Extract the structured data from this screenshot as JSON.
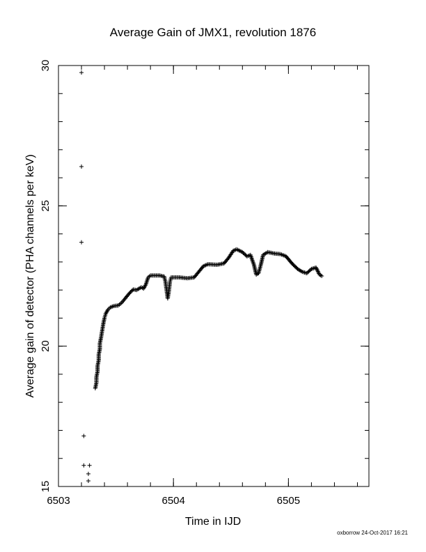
{
  "chart_data": {
    "type": "scatter",
    "title": "Average Gain of JMX1, revolution 1876",
    "xlabel": "Time in IJD",
    "ylabel": "Average gain of detector (PHA channels per keV)",
    "xlim": [
      6503.0,
      6505.7
    ],
    "ylim": [
      15,
      30
    ],
    "x_ticks": [
      6503,
      6504,
      6505
    ],
    "y_ticks": [
      15,
      20,
      25,
      30
    ],
    "x_minor_step": 0.2,
    "y_minor_step": 1,
    "marker": "plus",
    "grid": false,
    "points": [
      [
        6503.2,
        29.75
      ],
      [
        6503.2,
        26.4
      ],
      [
        6503.2,
        23.7
      ],
      [
        6503.22,
        16.8
      ],
      [
        6503.22,
        15.75
      ],
      [
        6503.27,
        15.75
      ],
      [
        6503.26,
        15.45
      ],
      [
        6503.26,
        15.2
      ],
      [
        6503.32,
        18.5
      ],
      [
        6503.33,
        18.7
      ],
      [
        6503.33,
        18.9
      ],
      [
        6503.34,
        19.1
      ],
      [
        6503.34,
        19.3
      ],
      [
        6503.35,
        19.5
      ],
      [
        6503.35,
        19.7
      ],
      [
        6503.36,
        19.9
      ],
      [
        6503.36,
        20.1
      ],
      [
        6503.37,
        20.3
      ],
      [
        6503.38,
        20.55
      ],
      [
        6503.39,
        20.8
      ],
      [
        6503.4,
        21.0
      ],
      [
        6503.41,
        21.15
      ],
      [
        6503.43,
        21.3
      ],
      [
        6503.45,
        21.38
      ],
      [
        6503.48,
        21.43
      ],
      [
        6503.52,
        21.45
      ],
      [
        6503.55,
        21.55
      ],
      [
        6503.58,
        21.7
      ],
      [
        6503.62,
        21.9
      ],
      [
        6503.65,
        22.02
      ],
      [
        6503.68,
        22.0
      ],
      [
        6503.7,
        22.05
      ],
      [
        6503.72,
        22.1
      ],
      [
        6503.74,
        22.05
      ],
      [
        6503.76,
        22.2
      ],
      [
        6503.78,
        22.45
      ],
      [
        6503.8,
        22.52
      ],
      [
        6503.84,
        22.52
      ],
      [
        6503.88,
        22.52
      ],
      [
        6503.92,
        22.48
      ],
      [
        6503.93,
        22.3
      ],
      [
        6503.94,
        22.0
      ],
      [
        6503.95,
        21.7
      ],
      [
        6503.96,
        21.95
      ],
      [
        6503.97,
        22.3
      ],
      [
        6503.98,
        22.45
      ],
      [
        6504.05,
        22.45
      ],
      [
        6504.12,
        22.42
      ],
      [
        6504.18,
        22.45
      ],
      [
        6504.22,
        22.65
      ],
      [
        6504.26,
        22.85
      ],
      [
        6504.3,
        22.92
      ],
      [
        6504.38,
        22.9
      ],
      [
        6504.44,
        22.95
      ],
      [
        6504.48,
        23.15
      ],
      [
        6504.52,
        23.4
      ],
      [
        6504.55,
        23.45
      ],
      [
        6504.6,
        23.35
      ],
      [
        6504.64,
        23.2
      ],
      [
        6504.67,
        23.25
      ],
      [
        6504.7,
        22.9
      ],
      [
        6504.72,
        22.55
      ],
      [
        6504.74,
        22.6
      ],
      [
        6504.76,
        22.9
      ],
      [
        6504.78,
        23.25
      ],
      [
        6504.82,
        23.35
      ],
      [
        6504.88,
        23.3
      ],
      [
        6504.93,
        23.28
      ],
      [
        6504.98,
        23.2
      ],
      [
        6505.03,
        22.95
      ],
      [
        6505.08,
        22.75
      ],
      [
        6505.12,
        22.65
      ],
      [
        6505.16,
        22.6
      ],
      [
        6505.2,
        22.75
      ],
      [
        6505.24,
        22.8
      ],
      [
        6505.27,
        22.55
      ],
      [
        6505.29,
        22.5
      ]
    ],
    "footer": "oxborrow 24-Oct-2017 16:21"
  }
}
